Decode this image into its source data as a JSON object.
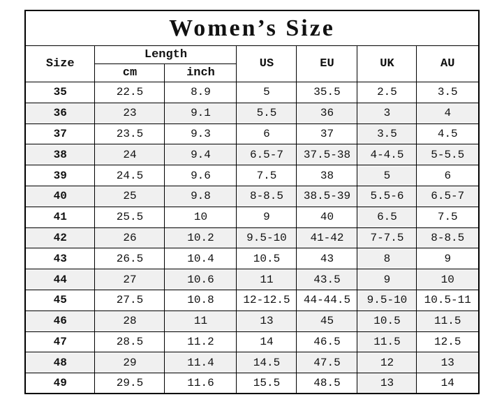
{
  "title": "Women’s Size",
  "colors": {
    "page_bg": "#ffffff",
    "border": "#000000",
    "alt_row_bg": "#f0f0f0"
  },
  "table": {
    "headers": {
      "size": "Size",
      "length": "Length",
      "cm": "cm",
      "inch": "inch",
      "us": "US",
      "eu": "EU",
      "uk": "UK",
      "au": "AU"
    },
    "rows": [
      {
        "size": "35",
        "cm": "22.5",
        "inch": "8.9",
        "us": "5",
        "eu": "35.5",
        "uk": "2.5",
        "au": "3.5"
      },
      {
        "size": "36",
        "cm": "23",
        "inch": "9.1",
        "us": "5.5",
        "eu": "36",
        "uk": "3",
        "au": "4"
      },
      {
        "size": "37",
        "cm": "23.5",
        "inch": "9.3",
        "us": "6",
        "eu": "37",
        "uk": "3.5",
        "au": "4.5"
      },
      {
        "size": "38",
        "cm": "24",
        "inch": "9.4",
        "us": "6.5-7",
        "eu": "37.5-38",
        "uk": "4-4.5",
        "au": "5-5.5"
      },
      {
        "size": "39",
        "cm": "24.5",
        "inch": "9.6",
        "us": "7.5",
        "eu": "38",
        "uk": "5",
        "au": "6"
      },
      {
        "size": "40",
        "cm": "25",
        "inch": "9.8",
        "us": "8-8.5",
        "eu": "38.5-39",
        "uk": "5.5-6",
        "au": "6.5-7"
      },
      {
        "size": "41",
        "cm": "25.5",
        "inch": "10",
        "us": "9",
        "eu": "40",
        "uk": "6.5",
        "au": "7.5"
      },
      {
        "size": "42",
        "cm": "26",
        "inch": "10.2",
        "us": "9.5-10",
        "eu": "41-42",
        "uk": "7-7.5",
        "au": "8-8.5"
      },
      {
        "size": "43",
        "cm": "26.5",
        "inch": "10.4",
        "us": "10.5",
        "eu": "43",
        "uk": "8",
        "au": "9"
      },
      {
        "size": "44",
        "cm": "27",
        "inch": "10.6",
        "us": "11",
        "eu": "43.5",
        "uk": "9",
        "au": "10"
      },
      {
        "size": "45",
        "cm": "27.5",
        "inch": "10.8",
        "us": "12-12.5",
        "eu": "44-44.5",
        "uk": "9.5-10",
        "au": "10.5-11"
      },
      {
        "size": "46",
        "cm": "28",
        "inch": "11",
        "us": "13",
        "eu": "45",
        "uk": "10.5",
        "au": "11.5"
      },
      {
        "size": "47",
        "cm": "28.5",
        "inch": "11.2",
        "us": "14",
        "eu": "46.5",
        "uk": "11.5",
        "au": "12.5"
      },
      {
        "size": "48",
        "cm": "29",
        "inch": "11.4",
        "us": "14.5",
        "eu": "47.5",
        "uk": "12",
        "au": "13"
      },
      {
        "size": "49",
        "cm": "29.5",
        "inch": "11.6",
        "us": "15.5",
        "eu": "48.5",
        "uk": "13",
        "au": "14"
      }
    ]
  },
  "chart_data": {
    "type": "table",
    "title": "Women’s Size",
    "columns": [
      "Size",
      "Length cm",
      "Length inch",
      "US",
      "EU",
      "UK",
      "AU"
    ],
    "rows": [
      [
        "35",
        "22.5",
        "8.9",
        "5",
        "35.5",
        "2.5",
        "3.5"
      ],
      [
        "36",
        "23",
        "9.1",
        "5.5",
        "36",
        "3",
        "4"
      ],
      [
        "37",
        "23.5",
        "9.3",
        "6",
        "37",
        "3.5",
        "4.5"
      ],
      [
        "38",
        "24",
        "9.4",
        "6.5-7",
        "37.5-38",
        "4-4.5",
        "5-5.5"
      ],
      [
        "39",
        "24.5",
        "9.6",
        "7.5",
        "38",
        "5",
        "6"
      ],
      [
        "40",
        "25",
        "9.8",
        "8-8.5",
        "38.5-39",
        "5.5-6",
        "6.5-7"
      ],
      [
        "41",
        "25.5",
        "10",
        "9",
        "40",
        "6.5",
        "7.5"
      ],
      [
        "42",
        "26",
        "10.2",
        "9.5-10",
        "41-42",
        "7-7.5",
        "8-8.5"
      ],
      [
        "43",
        "26.5",
        "10.4",
        "10.5",
        "43",
        "8",
        "9"
      ],
      [
        "44",
        "27",
        "10.6",
        "11",
        "43.5",
        "9",
        "10"
      ],
      [
        "45",
        "27.5",
        "10.8",
        "12-12.5",
        "44-44.5",
        "9.5-10",
        "10.5-11"
      ],
      [
        "46",
        "28",
        "11",
        "13",
        "45",
        "10.5",
        "11.5"
      ],
      [
        "47",
        "28.5",
        "11.2",
        "14",
        "46.5",
        "11.5",
        "12.5"
      ],
      [
        "48",
        "29",
        "11.4",
        "14.5",
        "47.5",
        "12",
        "13"
      ],
      [
        "49",
        "29.5",
        "11.6",
        "15.5",
        "48.5",
        "13",
        "14"
      ]
    ],
    "layout": {
      "alternating_row_shading": true,
      "uk_column_shaded_from_row": "36",
      "grid": true
    }
  }
}
